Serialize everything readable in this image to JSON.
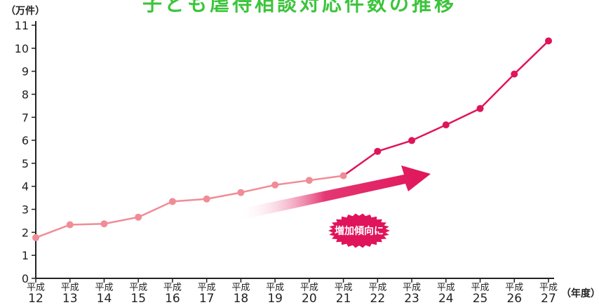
{
  "chart_data": {
    "type": "line",
    "title": "子ども虐待相談対応件数の推移",
    "ylabel": "（万件）",
    "xlabel": "（年度）",
    "x": [
      "平成12",
      "平成13",
      "平成14",
      "平成15",
      "平成16",
      "平成17",
      "平成18",
      "平成19",
      "平成20",
      "平成21",
      "平成22",
      "平成23",
      "平成24",
      "平成25",
      "平成26",
      "平成27"
    ],
    "x_era": "平成",
    "x_years": [
      "12",
      "13",
      "14",
      "15",
      "16",
      "17",
      "18",
      "19",
      "20",
      "21",
      "22",
      "23",
      "24",
      "25",
      "26",
      "27"
    ],
    "series": [
      {
        "values": [
          1.77,
          2.33,
          2.37,
          2.66,
          3.34,
          3.45,
          3.73,
          4.06,
          4.26,
          4.46,
          5.52,
          5.99,
          6.67,
          7.38,
          8.88,
          10.32
        ]
      }
    ],
    "yticks": [
      0,
      1,
      2,
      3,
      4,
      5,
      6,
      7,
      8,
      9,
      10,
      11
    ],
    "ylim": [
      0,
      11
    ],
    "grid": false,
    "annotation": "増加傾向に",
    "colors": {
      "early_line": "#f08c96",
      "late_line": "#e0145a",
      "title": "#3cc43c",
      "arrow": "#e0145a",
      "badge": "#e0145a"
    }
  }
}
